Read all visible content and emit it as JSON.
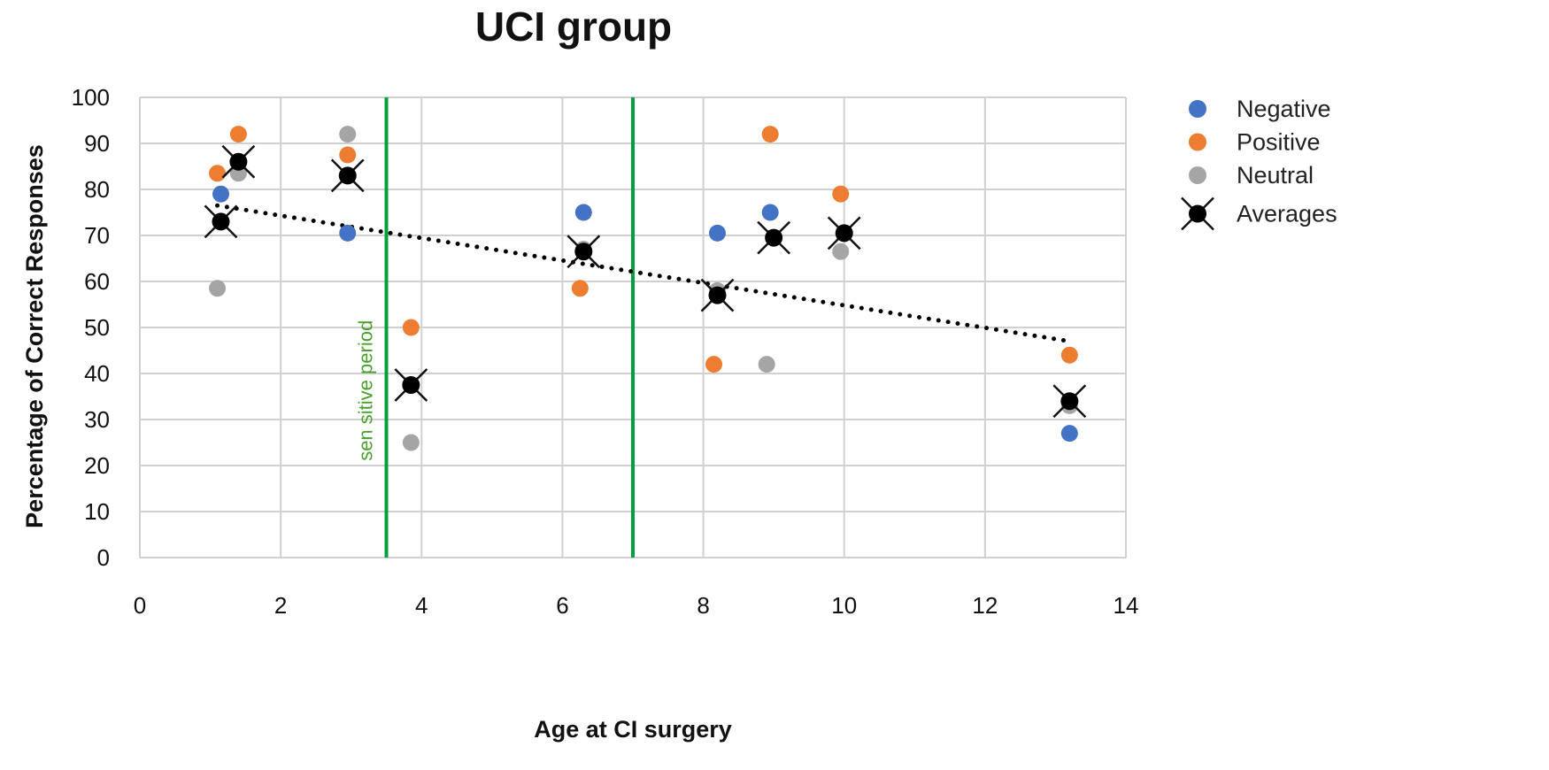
{
  "chart_data": {
    "type": "scatter",
    "title": "UCI group",
    "xlabel": "Age at CI surgery",
    "ylabel": "Percentage of Correct Responses",
    "xlim": [
      0,
      14
    ],
    "ylim": [
      0,
      100
    ],
    "x_ticks": [
      0,
      2,
      4,
      6,
      8,
      10,
      12,
      14
    ],
    "y_ticks": [
      0,
      10,
      20,
      30,
      40,
      50,
      60,
      70,
      80,
      90,
      100
    ],
    "grid": true,
    "legend_position": "right",
    "series": [
      {
        "name": "Negative",
        "color": "#4472c4",
        "marker": "circle",
        "points": [
          [
            1.15,
            79
          ],
          [
            2.95,
            70.5
          ],
          [
            6.3,
            75
          ],
          [
            8.2,
            70.5
          ],
          [
            8.95,
            75
          ],
          [
            13.2,
            27
          ]
        ]
      },
      {
        "name": "Positive",
        "color": "#ed7d31",
        "marker": "circle",
        "points": [
          [
            1.1,
            83.5
          ],
          [
            1.4,
            92
          ],
          [
            2.95,
            87.5
          ],
          [
            3.85,
            50
          ],
          [
            6.25,
            58.5
          ],
          [
            8.15,
            42
          ],
          [
            8.95,
            92
          ],
          [
            9.95,
            79
          ],
          [
            13.2,
            44
          ]
        ]
      },
      {
        "name": "Neutral",
        "color": "#a5a5a5",
        "marker": "circle",
        "points": [
          [
            1.1,
            58.5
          ],
          [
            1.4,
            83.5
          ],
          [
            2.95,
            92
          ],
          [
            3.85,
            25
          ],
          [
            6.3,
            67
          ],
          [
            8.2,
            58
          ],
          [
            8.9,
            42
          ],
          [
            9.95,
            66.5
          ],
          [
            13.2,
            33
          ]
        ]
      },
      {
        "name": "Averages",
        "color": "#000000",
        "marker": "x-circle",
        "points": [
          [
            1.15,
            73
          ],
          [
            1.4,
            86
          ],
          [
            2.95,
            83
          ],
          [
            3.85,
            37.5
          ],
          [
            6.3,
            66.5
          ],
          [
            8.2,
            57
          ],
          [
            9.0,
            69.5
          ],
          [
            10.0,
            70.5
          ],
          [
            13.2,
            34
          ]
        ]
      }
    ],
    "trendline": {
      "style": "dotted",
      "color": "#000000",
      "from": [
        1.1,
        76.5
      ],
      "to": [
        13.2,
        47
      ]
    },
    "vertical_lines": [
      {
        "x": 3.5,
        "color": "#00a040"
      },
      {
        "x": 7.0,
        "color": "#00a040"
      }
    ],
    "annotations": [
      {
        "text": "sen sitive period",
        "x": 3.3,
        "y": 21,
        "rotation": -90,
        "color": "#4aa02c"
      }
    ]
  }
}
